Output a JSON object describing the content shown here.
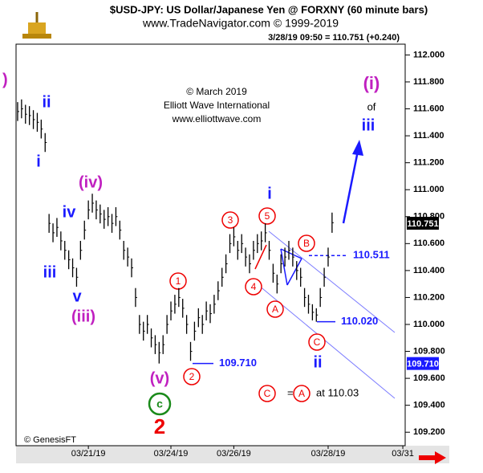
{
  "chart_data": {
    "type": "range-bar",
    "title": "$USD-JPY:  US Dollar/Japanese Yen @ FORXNY  (60 minute bars)",
    "subtitle": "www.TradeNavigator.com © 1999-2019",
    "quote": "3/28/19 09:50 = 110.751 (+0.240)",
    "credits": [
      "© March 2019",
      "Elliott Wave International",
      "www.elliottwave.com"
    ],
    "source": "© GenesisFT",
    "color": "#000000",
    "categories": [
      null,
      null,
      null,
      null,
      null,
      null,
      null,
      null,
      null,
      null,
      null,
      null,
      null,
      null,
      null,
      null,
      null,
      null,
      null,
      null,
      null,
      null,
      null,
      null,
      null,
      null,
      null,
      null,
      null,
      null,
      null,
      null,
      null,
      null,
      null,
      null,
      null,
      null,
      null,
      null,
      null,
      null,
      null,
      null,
      null,
      null,
      null,
      null,
      null,
      null,
      null,
      null,
      null,
      null,
      null,
      null,
      null,
      null,
      null,
      null,
      null,
      null,
      null,
      null,
      null,
      null,
      null,
      null,
      null,
      null,
      null,
      null,
      null,
      null,
      null,
      null,
      null,
      null,
      null,
      null,
      null
    ],
    "high": [
      111.65,
      111.67,
      111.63,
      111.62,
      111.59,
      111.57,
      111.52,
      111.42,
      110.82,
      110.75,
      110.79,
      110.69,
      110.62,
      110.55,
      110.49,
      110.42,
      110.62,
      110.77,
      110.92,
      110.97,
      110.92,
      110.89,
      110.85,
      110.87,
      110.82,
      110.87,
      110.77,
      110.62,
      110.57,
      110.49,
      110.27,
      110.07,
      110.02,
      110.07,
      109.97,
      109.92,
      109.87,
      109.92,
      110.07,
      110.17,
      110.22,
      110.27,
      110.19,
      110.07,
      109.87,
      110.02,
      110.12,
      110.07,
      110.17,
      110.15,
      110.22,
      110.32,
      110.42,
      110.52,
      110.67,
      110.72,
      110.62,
      110.67,
      110.57,
      110.52,
      110.62,
      110.67,
      110.69,
      110.75,
      110.62,
      110.45,
      110.37,
      110.52,
      110.57,
      110.62,
      110.57,
      110.47,
      110.42,
      110.27,
      110.22,
      110.15,
      110.12,
      110.27,
      110.42,
      110.57,
      110.83
    ],
    "low": [
      111.51,
      111.53,
      111.49,
      111.48,
      111.45,
      111.43,
      111.38,
      111.28,
      110.68,
      110.61,
      110.65,
      110.55,
      110.48,
      110.41,
      110.35,
      110.28,
      110.48,
      110.63,
      110.78,
      110.83,
      110.78,
      110.75,
      110.71,
      110.73,
      110.68,
      110.73,
      110.63,
      110.48,
      110.43,
      110.35,
      110.13,
      109.93,
      109.88,
      109.93,
      109.83,
      109.78,
      109.71,
      109.78,
      109.93,
      110.03,
      110.08,
      110.13,
      110.05,
      109.93,
      109.73,
      109.88,
      109.98,
      109.93,
      110.03,
      110.01,
      110.08,
      110.18,
      110.28,
      110.38,
      110.53,
      110.58,
      110.48,
      110.53,
      110.43,
      110.38,
      110.48,
      110.53,
      110.55,
      110.61,
      110.48,
      110.31,
      110.23,
      110.38,
      110.43,
      110.48,
      110.43,
      110.33,
      110.28,
      110.13,
      110.08,
      110.03,
      110.02,
      110.13,
      110.28,
      110.43,
      110.68
    ],
    "xlim": [
      -0.4,
      98.6
    ],
    "xticks": [
      {
        "value": 18,
        "label": "03/21/19"
      },
      {
        "value": 39,
        "label": "03/24/19"
      },
      {
        "value": 55,
        "label": "03/26/19"
      },
      {
        "value": 79,
        "label": "03/28/19"
      },
      {
        "value": 98,
        "label": "03/31"
      }
    ],
    "ylim": [
      109.1,
      112.08
    ],
    "yticks": [
      {
        "value": 109.2,
        "label": "109.200"
      },
      {
        "value": 109.4,
        "label": "109.400"
      },
      {
        "value": 109.6,
        "label": "109.600"
      },
      {
        "value": 109.8,
        "label": "109.800"
      },
      {
        "value": 110,
        "label": "110.000"
      },
      {
        "value": 110.2,
        "label": "110.200"
      },
      {
        "value": 110.4,
        "label": "110.400"
      },
      {
        "value": 110.6,
        "label": "110.600"
      },
      {
        "value": 110.8,
        "label": "110.800"
      },
      {
        "value": 111,
        "label": "111.000"
      },
      {
        "value": 111.2,
        "label": "111.200"
      },
      {
        "value": 111.4,
        "label": "111.400"
      },
      {
        "value": 111.6,
        "label": "111.600"
      },
      {
        "value": 111.8,
        "label": "111.800"
      },
      {
        "value": 112,
        "label": "112.000"
      }
    ],
    "axis_markers": [
      {
        "value": 110.751,
        "label": "110.751",
        "color": "#000000"
      },
      {
        "value": 109.71,
        "label": "109.710",
        "color": "#1a1aff"
      }
    ],
    "levels": [
      {
        "value": 110.511,
        "label": "110.511",
        "color": "#1a1aff",
        "dashed": true
      },
      {
        "value": 110.02,
        "label": "110.020",
        "color": "#1a1aff",
        "dashed": false
      },
      {
        "value": 109.71,
        "label": "109.710",
        "color": "#1a1aff",
        "dashed": false
      }
    ],
    "labels": [
      ")",
      "ii",
      "i",
      "iv",
      "iii",
      "v",
      "(iii)",
      "(iv)",
      "(v)",
      "c",
      "2",
      "1",
      "2",
      "3",
      "4",
      "5",
      "A",
      "B",
      "C",
      "i",
      "ii",
      "(i)",
      "of",
      "iii",
      "C",
      "=",
      "A",
      "at 110.03"
    ]
  }
}
